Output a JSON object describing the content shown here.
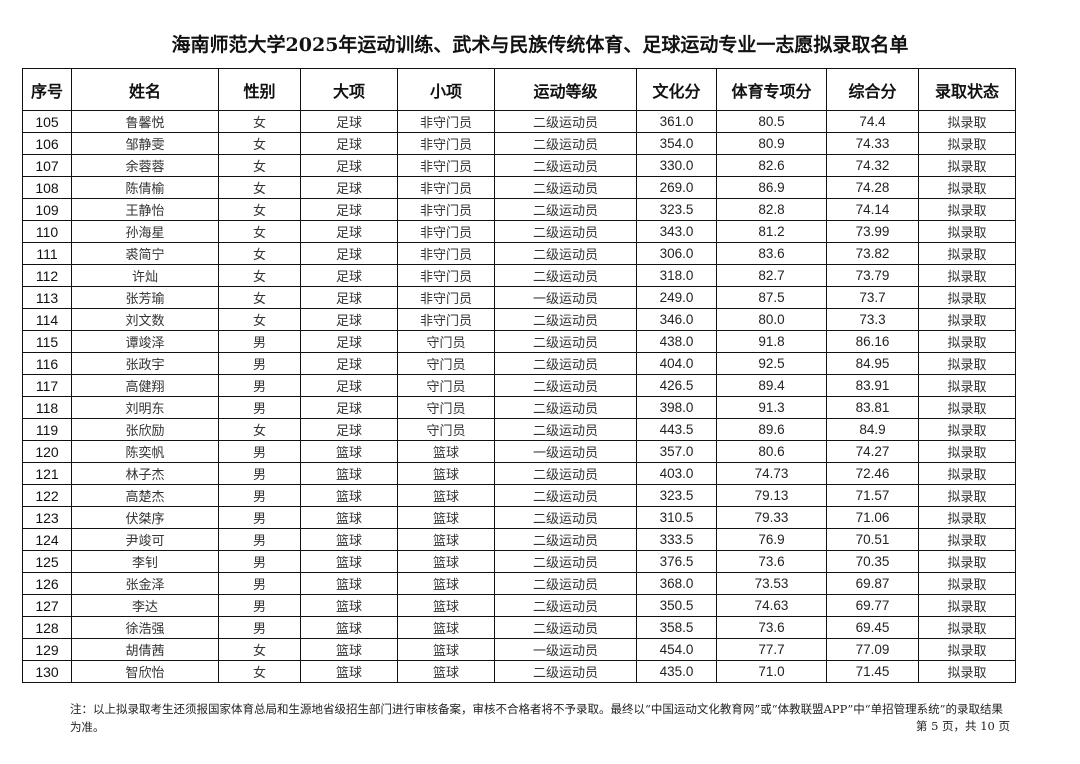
{
  "document": {
    "title": "海南师范大学2025年运动训练、武术与民族传统体育、足球运动专业一志愿拟录取名单",
    "columns": [
      "序号",
      "姓名",
      "性别",
      "大项",
      "小项",
      "运动等级",
      "文化分",
      "体育专项分",
      "综合分",
      "录取状态"
    ],
    "rows": [
      [
        "105",
        "鲁馨悦",
        "女",
        "足球",
        "非守门员",
        "二级运动员",
        "361.0",
        "80.5",
        "74.4",
        "拟录取"
      ],
      [
        "106",
        "邹静雯",
        "女",
        "足球",
        "非守门员",
        "二级运动员",
        "354.0",
        "80.9",
        "74.33",
        "拟录取"
      ],
      [
        "107",
        "余蓉蓉",
        "女",
        "足球",
        "非守门员",
        "二级运动员",
        "330.0",
        "82.6",
        "74.32",
        "拟录取"
      ],
      [
        "108",
        "陈倩榆",
        "女",
        "足球",
        "非守门员",
        "二级运动员",
        "269.0",
        "86.9",
        "74.28",
        "拟录取"
      ],
      [
        "109",
        "王静怡",
        "女",
        "足球",
        "非守门员",
        "二级运动员",
        "323.5",
        "82.8",
        "74.14",
        "拟录取"
      ],
      [
        "110",
        "孙海星",
        "女",
        "足球",
        "非守门员",
        "二级运动员",
        "343.0",
        "81.2",
        "73.99",
        "拟录取"
      ],
      [
        "111",
        "裘简宁",
        "女",
        "足球",
        "非守门员",
        "二级运动员",
        "306.0",
        "83.6",
        "73.82",
        "拟录取"
      ],
      [
        "112",
        "许灿",
        "女",
        "足球",
        "非守门员",
        "二级运动员",
        "318.0",
        "82.7",
        "73.79",
        "拟录取"
      ],
      [
        "113",
        "张芳瑜",
        "女",
        "足球",
        "非守门员",
        "一级运动员",
        "249.0",
        "87.5",
        "73.7",
        "拟录取"
      ],
      [
        "114",
        "刘文数",
        "女",
        "足球",
        "非守门员",
        "二级运动员",
        "346.0",
        "80.0",
        "73.3",
        "拟录取"
      ],
      [
        "115",
        "谭竣泽",
        "男",
        "足球",
        "守门员",
        "二级运动员",
        "438.0",
        "91.8",
        "86.16",
        "拟录取"
      ],
      [
        "116",
        "张政宇",
        "男",
        "足球",
        "守门员",
        "二级运动员",
        "404.0",
        "92.5",
        "84.95",
        "拟录取"
      ],
      [
        "117",
        "高健翔",
        "男",
        "足球",
        "守门员",
        "二级运动员",
        "426.5",
        "89.4",
        "83.91",
        "拟录取"
      ],
      [
        "118",
        "刘明东",
        "男",
        "足球",
        "守门员",
        "二级运动员",
        "398.0",
        "91.3",
        "83.81",
        "拟录取"
      ],
      [
        "119",
        "张欣励",
        "女",
        "足球",
        "守门员",
        "二级运动员",
        "443.5",
        "89.6",
        "84.9",
        "拟录取"
      ],
      [
        "120",
        "陈奕帆",
        "男",
        "篮球",
        "篮球",
        "一级运动员",
        "357.0",
        "80.6",
        "74.27",
        "拟录取"
      ],
      [
        "121",
        "林子杰",
        "男",
        "篮球",
        "篮球",
        "二级运动员",
        "403.0",
        "74.73",
        "72.46",
        "拟录取"
      ],
      [
        "122",
        "高楚杰",
        "男",
        "篮球",
        "篮球",
        "二级运动员",
        "323.5",
        "79.13",
        "71.57",
        "拟录取"
      ],
      [
        "123",
        "伏桀序",
        "男",
        "篮球",
        "篮球",
        "二级运动员",
        "310.5",
        "79.33",
        "71.06",
        "拟录取"
      ],
      [
        "124",
        "尹竣可",
        "男",
        "篮球",
        "篮球",
        "二级运动员",
        "333.5",
        "76.9",
        "70.51",
        "拟录取"
      ],
      [
        "125",
        "李钊",
        "男",
        "篮球",
        "篮球",
        "二级运动员",
        "376.5",
        "73.6",
        "70.35",
        "拟录取"
      ],
      [
        "126",
        "张金泽",
        "男",
        "篮球",
        "篮球",
        "二级运动员",
        "368.0",
        "73.53",
        "69.87",
        "拟录取"
      ],
      [
        "127",
        "李达",
        "男",
        "篮球",
        "篮球",
        "二级运动员",
        "350.5",
        "74.63",
        "69.77",
        "拟录取"
      ],
      [
        "128",
        "徐浩强",
        "男",
        "篮球",
        "篮球",
        "二级运动员",
        "358.5",
        "73.6",
        "69.45",
        "拟录取"
      ],
      [
        "129",
        "胡倩茜",
        "女",
        "篮球",
        "篮球",
        "一级运动员",
        "454.0",
        "77.7",
        "77.09",
        "拟录取"
      ],
      [
        "130",
        "智欣怡",
        "女",
        "篮球",
        "篮球",
        "二级运动员",
        "435.0",
        "71.0",
        "71.45",
        "拟录取"
      ]
    ],
    "note": "注：以上拟录取考生还须报国家体育总局和生源地省级招生部门进行审核备案，审核不合格者将不予录取。最终以“中国运动文化教育网”或“体教联盟APP”中“单招管理系统”的录取结果为准。",
    "page_indicator": "第 5 页，共 10 页"
  }
}
